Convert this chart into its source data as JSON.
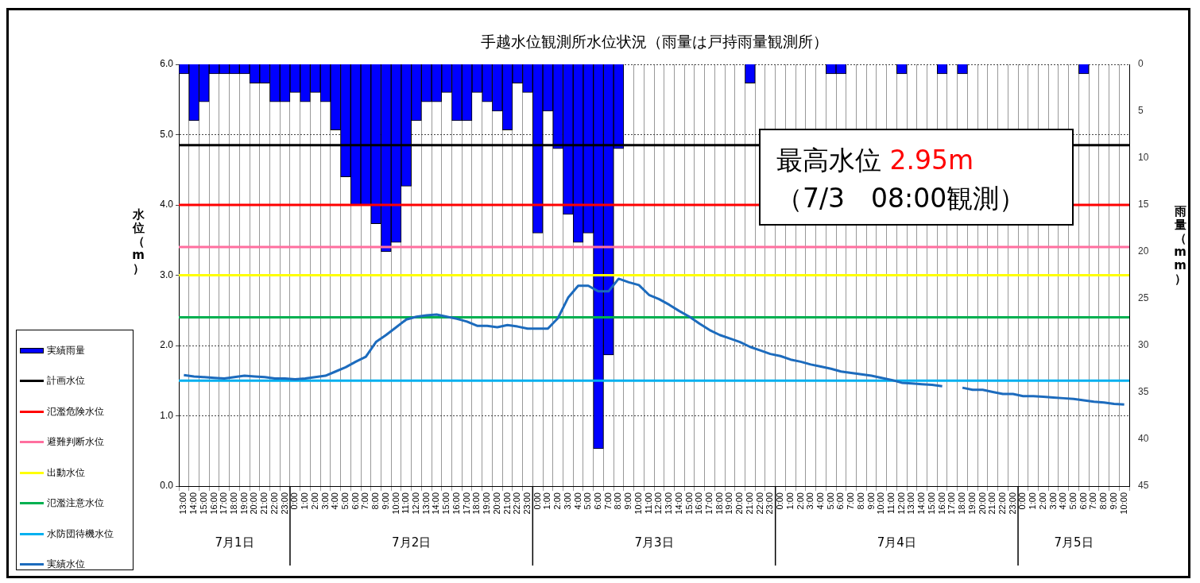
{
  "chart_data": {
    "type": "bar",
    "title": "手越水位観測所水位状況（雨量は戸持雨量観測所）",
    "ylabel": "水位（m）",
    "y2label": "雨量（mm）",
    "categories": [
      "13:00",
      "14:00",
      "15:00",
      "16:00",
      "17:00",
      "18:00",
      "19:00",
      "20:00",
      "21:00",
      "22:00",
      "23:00",
      "0:00",
      "1:00",
      "2:00",
      "3:00",
      "4:00",
      "5:00",
      "6:00",
      "7:00",
      "8:00",
      "9:00",
      "10:00",
      "11:00",
      "12:00",
      "13:00",
      "14:00",
      "15:00",
      "16:00",
      "17:00",
      "18:00",
      "19:00",
      "20:00",
      "21:00",
      "22:00",
      "23:00",
      "0:00",
      "1:00",
      "2:00",
      "3:00",
      "4:00",
      "5:00",
      "6:00",
      "7:00",
      "8:00",
      "9:00",
      "10:00",
      "11:00",
      "12:00",
      "13:00",
      "14:00",
      "15:00",
      "16:00",
      "17:00",
      "18:00",
      "19:00",
      "20:00",
      "21:00",
      "22:00",
      "23:00",
      "0:00",
      "1:00",
      "2:00",
      "3:00",
      "4:00",
      "5:00",
      "6:00",
      "7:00",
      "8:00",
      "9:00",
      "10:00",
      "11:00",
      "12:00",
      "13:00",
      "14:00",
      "15:00",
      "16:00",
      "17:00",
      "18:00",
      "19:00",
      "20:00",
      "21:00",
      "22:00",
      "23:00",
      "0:00",
      "1:00",
      "2:00",
      "3:00",
      "4:00",
      "5:00",
      "6:00",
      "7:00",
      "8:00",
      "9:00",
      "10:00"
    ],
    "series": [
      {
        "name": "実績雨量",
        "axis": "y2",
        "color": "#0000ff",
        "values": [
          1,
          6,
          4,
          1,
          1,
          1,
          1,
          2,
          2,
          4,
          4,
          3,
          4,
          3,
          4,
          7,
          12,
          15,
          15,
          17,
          20,
          19,
          13,
          6,
          4,
          4,
          3,
          6,
          6,
          3,
          4,
          5,
          7,
          2,
          3,
          18,
          5,
          9,
          16,
          19,
          18,
          41,
          31,
          9,
          0,
          0,
          0,
          0,
          0,
          0,
          0,
          0,
          0,
          0,
          0,
          0,
          2,
          0,
          0,
          0,
          0,
          0,
          0,
          0,
          1,
          1,
          0,
          0,
          0,
          0,
          0,
          1,
          0,
          0,
          0,
          1,
          0,
          1,
          0,
          0,
          0,
          0,
          0,
          0,
          0,
          0,
          0,
          0,
          0,
          1,
          0,
          0,
          0,
          0
        ]
      },
      {
        "name": "実績水位",
        "type": "line",
        "color": "#1c6bbd",
        "values": [
          1.58,
          1.56,
          1.55,
          1.54,
          1.53,
          1.55,
          1.57,
          1.56,
          1.55,
          1.53,
          1.53,
          1.52,
          1.53,
          1.55,
          1.57,
          1.63,
          1.69,
          1.77,
          1.84,
          2.05,
          2.15,
          2.26,
          2.37,
          2.41,
          2.43,
          2.44,
          2.41,
          2.38,
          2.34,
          2.28,
          2.28,
          2.26,
          2.29,
          2.27,
          2.24,
          2.24,
          2.24,
          2.39,
          2.68,
          2.85,
          2.85,
          2.77,
          2.77,
          2.95,
          2.9,
          2.86,
          2.72,
          2.66,
          2.58,
          2.49,
          2.41,
          2.31,
          2.22,
          2.15,
          2.1,
          2.05,
          1.98,
          1.93,
          1.88,
          1.85,
          1.8,
          1.77,
          1.73,
          1.7,
          1.67,
          1.63,
          1.61,
          1.59,
          1.57,
          1.54,
          1.51,
          1.47,
          1.46,
          1.45,
          1.44,
          1.42,
          null,
          1.4,
          1.37,
          1.37,
          1.34,
          1.31,
          1.31,
          1.28,
          1.28,
          1.27,
          1.26,
          1.25,
          1.24,
          1.22,
          1.2,
          1.19,
          1.17,
          1.16
        ]
      }
    ],
    "ref_lines": [
      {
        "axis": "y",
        "value": 4.85,
        "label": "計画水位",
        "color": "#000000"
      },
      {
        "axis": "y",
        "value": 4.0,
        "label": "氾濫危険水位",
        "color": "#ff0000"
      },
      {
        "axis": "y",
        "value": 3.4,
        "label": "避難判断水位",
        "color": "#ff6f9f"
      },
      {
        "axis": "y",
        "value": 3.0,
        "label": "出動水位",
        "color": "#ffff00"
      },
      {
        "axis": "y",
        "value": 2.4,
        "label": "氾濫注意水位",
        "color": "#00b050"
      },
      {
        "axis": "y",
        "value": 1.5,
        "label": "水防団待機水位",
        "color": "#00b0f0"
      }
    ],
    "ylim": [
      0,
      6
    ],
    "yticks": [
      {
        "value": 0,
        "label": "0.0"
      },
      {
        "value": 1,
        "label": "1.0"
      },
      {
        "value": 2,
        "label": "2.0"
      },
      {
        "value": 3,
        "label": "3.0"
      },
      {
        "value": 4,
        "label": "4.0"
      },
      {
        "value": 5,
        "label": "5.0"
      },
      {
        "value": 6,
        "label": "6.0"
      }
    ],
    "y2lim": [
      45,
      0
    ],
    "y2ticks": [
      0,
      5,
      10,
      15,
      20,
      25,
      30,
      35,
      40,
      45
    ],
    "annotations": [
      "7月1日",
      "7月2日",
      "7月3日",
      "7月4日",
      "7月5日",
      "最高水位 2.95m",
      "（7/3　08:00観測）"
    ],
    "grid": true,
    "legend": "left",
    "marker": "none"
  }
}
